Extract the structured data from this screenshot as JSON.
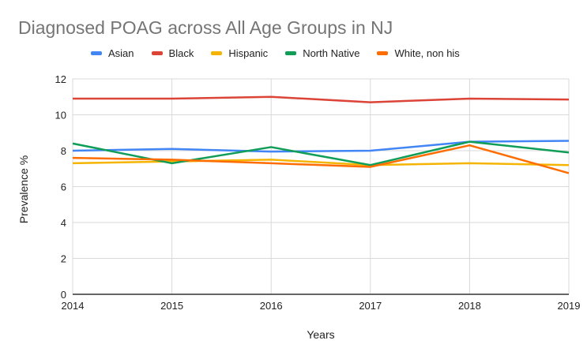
{
  "chart_data": {
    "type": "line",
    "title": "Diagnosed POAG across All Age Groups in NJ",
    "xlabel": "Years",
    "ylabel": "Prevalence %",
    "x": [
      "2014",
      "2015",
      "2016",
      "2017",
      "2018",
      "2019"
    ],
    "ylim": [
      0,
      12
    ],
    "yticks": [
      "0",
      "2",
      "4",
      "6",
      "8",
      "10",
      "12"
    ],
    "grid": true,
    "legend_position": "top",
    "series": [
      {
        "name": "Asian",
        "color": "#4285f4",
        "values": [
          8.0,
          8.1,
          7.95,
          8.0,
          8.5,
          8.55
        ]
      },
      {
        "name": "Black",
        "color": "#db4437",
        "values": [
          10.9,
          10.9,
          11.0,
          10.7,
          10.9,
          10.85
        ]
      },
      {
        "name": "Hispanic",
        "color": "#f4b400",
        "values": [
          7.3,
          7.4,
          7.5,
          7.2,
          7.3,
          7.2
        ]
      },
      {
        "name": "North Native",
        "color": "#0f9d58",
        "values": [
          8.4,
          7.3,
          8.2,
          7.2,
          8.5,
          7.9
        ]
      },
      {
        "name": "White, non his",
        "color": "#ff6d01",
        "values": [
          7.6,
          7.5,
          7.3,
          7.1,
          8.3,
          6.75
        ]
      }
    ]
  }
}
